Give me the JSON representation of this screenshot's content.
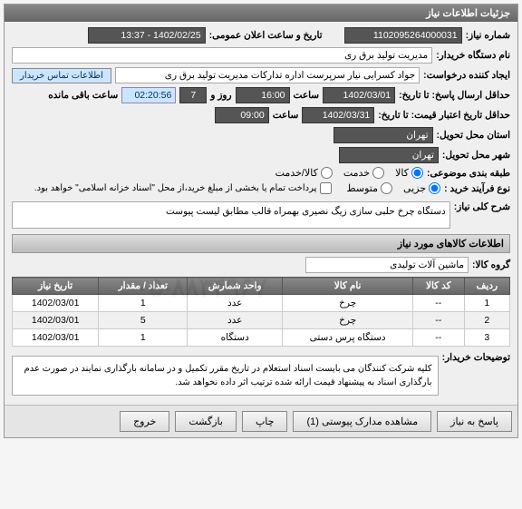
{
  "header": {
    "title": "جزئیات اطلاعات نیاز"
  },
  "form": {
    "need_no_label": "شماره نیاز:",
    "need_no": "1102095264000031",
    "pub_date_label": "تاریخ و ساعت اعلان عمومی:",
    "pub_date": "1402/02/25 - 13:37",
    "buyer_label": "نام دستگاه خریدار:",
    "buyer": "مدیریت تولید برق ری",
    "creator_label": "ایجاد کننده درخواست:",
    "creator": "جواد کسرایی نیار سرپرست اداره تدارکات مدیریت تولید برق ری",
    "contact_btn": "اطلاعات تماس خریدار",
    "deadline_label": "حداقل ارسال پاسخ: تا تاریخ:",
    "deadline_date": "1402/03/01",
    "time_label": "ساعت",
    "deadline_time": "16:00",
    "day_n_label": "روز و",
    "day_n": "7",
    "countdown": "02:20:56",
    "remain_label": "ساعت باقی مانده",
    "valid_label": "حداقل تاریخ اعتبار قیمت: تا تاریخ:",
    "valid_date": "1402/03/31",
    "valid_time": "09:00",
    "loc_label": "استان محل تحویل:",
    "loc": "تهران",
    "city_label": "شهر محل تحویل:",
    "city": "تهران",
    "class_label": "طبقه بندی موضوعی:",
    "class_opts": {
      "kala": "کالا",
      "khadamat": "خدمت",
      "kala_khadamat": "کالا/خدمت"
    },
    "class_sel": "kala",
    "proc_label": "نوع فرآیند خرید :",
    "proc_opts": {
      "jozi": "جزیی",
      "mot": "متوسط"
    },
    "proc_sel": "jozi",
    "pay_note": "پرداخت تمام یا بخشی از مبلغ خرید،از محل \"اسناد خزانه اسلامی\" خواهد بود.",
    "desc_label": "شرح کلی نیاز:",
    "desc": "دستگاه چرخ حلبی سازی زیگ نصیری بهمراه قالب مطابق لیست پیوست",
    "items_title": "اطلاعات کالاهای مورد نیاز",
    "group_label": "گروه کالا:",
    "group": "ماشین آلات تولیدی",
    "notes_label": "توضیحات خریدار:",
    "notes": "کلیه شرکت کنندگان می بایست اسناد استعلام در تاریخ مقرر تکمیل و در سامانه بارگذاری نمایند در صورت عدم بارگذاری اسناد به پیشنهاد قیمت ارائه شده ترتیب اثر داده نخواهد شد."
  },
  "table": {
    "headers": {
      "row": "ردیف",
      "code": "کد کالا",
      "name": "نام کالا",
      "unit": "واحد شمارش",
      "qty": "تعداد / مقدار",
      "date": "تاریخ نیاز"
    },
    "rows": [
      {
        "row": "1",
        "code": "--",
        "name": "چرخ",
        "unit": "عدد",
        "qty": "1",
        "date": "1402/03/01"
      },
      {
        "row": "2",
        "code": "--",
        "name": "چرخ",
        "unit": "عدد",
        "qty": "5",
        "date": "1402/03/01"
      },
      {
        "row": "3",
        "code": "--",
        "name": "دستگاه پرس دستی",
        "unit": "دستگاه",
        "qty": "1",
        "date": "1402/03/01"
      }
    ]
  },
  "footer": {
    "reply": "پاسخ به نیاز",
    "attach": "مشاهده مدارک پیوستی (1)",
    "print": "چاپ",
    "back": "بازگشت",
    "exit": "خروج"
  }
}
